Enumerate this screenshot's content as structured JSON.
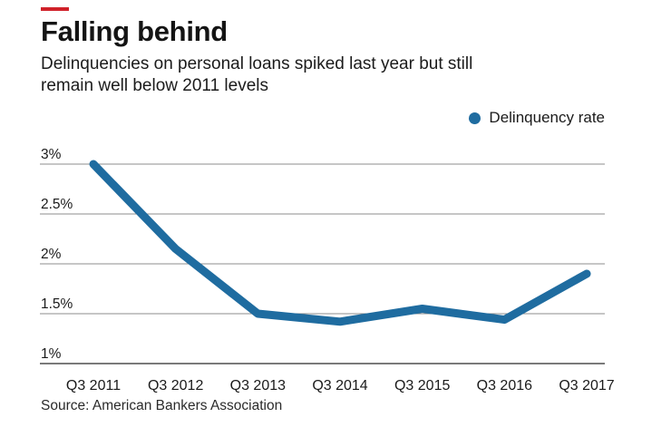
{
  "header": {
    "title": "Falling behind",
    "subtitle": "Delinquencies on personal loans spiked last year but still\nremain well below 2011 levels"
  },
  "source": "Source: American Bankers Association",
  "colors": {
    "accent_red": "#d0222a",
    "line_blue": "#1f6ca0",
    "grid_gray": "#8d8d8d",
    "axis_gray": "#4f4f4f"
  },
  "chart_data": {
    "type": "line",
    "title": "Falling behind",
    "subtitle": "Delinquencies on personal loans spiked last year but still remain well below 2011 levels",
    "categories": [
      "Q3 2011",
      "Q3 2012",
      "Q3 2013",
      "Q3 2014",
      "Q3 2015",
      "Q3 2016",
      "Q3 2017"
    ],
    "series": [
      {
        "name": "Delinquency rate",
        "values": [
          3.0,
          2.15,
          1.5,
          1.42,
          1.55,
          1.44,
          1.9
        ]
      }
    ],
    "unit": "%",
    "y_ticks": [
      "3%",
      "2.5%",
      "2%",
      "1.5%",
      "1%"
    ],
    "y_tick_values": [
      3,
      2.5,
      2,
      1.5,
      1
    ],
    "ylim": [
      1,
      3.05
    ],
    "xlabel": "",
    "ylabel": "",
    "grid": "horizontal",
    "legend_position": "top-right",
    "source": "Source: American Bankers Association"
  }
}
